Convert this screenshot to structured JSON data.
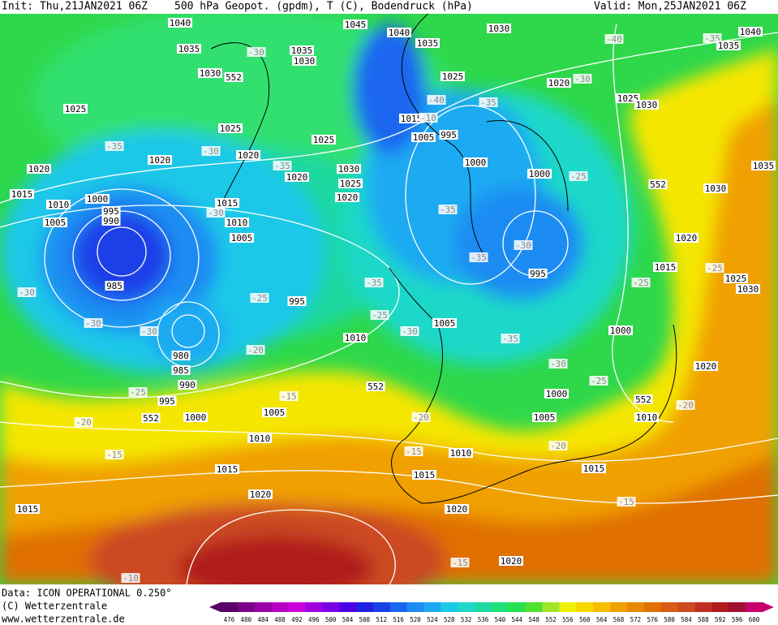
{
  "header": {
    "init": "Init: Thu,21JAN2021 06Z",
    "title": "500 hPa Geopot. (gpdm), T (C), Bodendruck (hPa)",
    "valid": "Valid: Mon,25JAN2021 06Z"
  },
  "footer": {
    "data_source": "Data: ICON OPERATIONAL 0.250°",
    "copyright": "(C) Wetterzentrale",
    "url": "www.wetterzentrale.de"
  },
  "scale": {
    "values": [
      476,
      480,
      484,
      488,
      492,
      496,
      500,
      504,
      508,
      512,
      516,
      520,
      524,
      528,
      532,
      536,
      540,
      544,
      548,
      552,
      556,
      560,
      564,
      568,
      572,
      576,
      580,
      584,
      588,
      592,
      596,
      600
    ],
    "colors": [
      "#5a0069",
      "#7a0087",
      "#9900a5",
      "#b800c4",
      "#cc00dd",
      "#a000e0",
      "#7a00e6",
      "#4c00e6",
      "#2020e0",
      "#1a40e8",
      "#1a66f0",
      "#1e8cf2",
      "#1eaaf2",
      "#1ec8e8",
      "#1ed8c8",
      "#1ed8a0",
      "#1ee078",
      "#28e050",
      "#50e030",
      "#a0e628",
      "#f0f000",
      "#f5d800",
      "#f5be00",
      "#f0a000",
      "#e88800",
      "#e07000",
      "#d85a14",
      "#cc4a20",
      "#c03020",
      "#b01a1a",
      "#a01030",
      "#c8006e"
    ]
  },
  "map_labels": [
    "1040",
    "1035",
    "1030",
    "552",
    "-30",
    "1035",
    "1030",
    "1045",
    "1040",
    "1035",
    "1030",
    "-40",
    "-35",
    "1040",
    "1035",
    "1025",
    "1020",
    "-30",
    "1025",
    "1025",
    "-35",
    "-30",
    "1020",
    "1020",
    "1020",
    "1025",
    "1030",
    "1025",
    "1020",
    "1020",
    "-35",
    "1015",
    "1010",
    "1000",
    "995",
    "990",
    "1005",
    "1015",
    "1010",
    "1005",
    "-30",
    "985",
    "-30",
    "-30",
    "-30",
    "-25",
    "995",
    "-35",
    "980",
    "985",
    "990",
    "995",
    "-25",
    "-20",
    "-25",
    "1010",
    "-30",
    "1005",
    "1015",
    "-10",
    "995",
    "1005",
    "1000",
    "1000",
    "-25",
    "-35",
    "-35",
    "-30",
    "995",
    "-35",
    "-30",
    "1000",
    "-25",
    "1000",
    "552",
    "1010",
    "1005",
    "-20",
    "1020",
    "1015",
    "-25",
    "-25",
    "1025",
    "1030",
    "1020",
    "552",
    "1030",
    "1035",
    "1025",
    "1030",
    "-35",
    "-40",
    "552",
    "-15",
    "1005",
    "1000",
    "552",
    "-20",
    "-15",
    "1010",
    "1015",
    "-20",
    "-15",
    "1010",
    "1015",
    "-20",
    "1015",
    "-15",
    "1020",
    "1015",
    "1020",
    "-15",
    "1020",
    "-10"
  ]
}
